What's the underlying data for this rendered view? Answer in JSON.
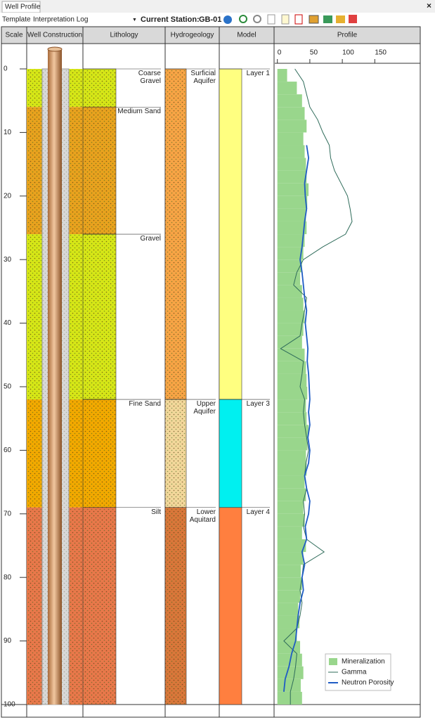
{
  "tab": "Well Profile",
  "toolbar": {
    "template_label": "Template",
    "template": "Interpretation Log",
    "station_label": "Current Station:",
    "station": "GB-01"
  },
  "columns": [
    "Scale",
    "Well Construction",
    "Lithology",
    "Hydrogeology",
    "Model",
    "Profile"
  ],
  "depth_axis": {
    "ylim": [
      0,
      100
    ],
    "yticks": [
      0,
      10,
      20,
      30,
      40,
      50,
      60,
      70,
      80,
      90,
      100
    ]
  },
  "lithology": [
    {
      "label": "Coarse Gravel",
      "top": 0,
      "bottom": 6,
      "color": "#d6e617"
    },
    {
      "label": "Medium Sand",
      "top": 6,
      "bottom": 26,
      "color": "#e8a21e"
    },
    {
      "label": "Gravel",
      "top": 26,
      "bottom": 52,
      "color": "#d6e617"
    },
    {
      "label": "Fine Sand",
      "top": 52,
      "bottom": 69,
      "color": "#f2a900"
    },
    {
      "label": "Silt",
      "top": 69,
      "bottom": 100,
      "color": "#e8784a"
    }
  ],
  "hydrogeology": [
    {
      "label": "Surficial Aquifer",
      "top": 0,
      "bottom": 52,
      "color": "#f7a445"
    },
    {
      "label": "Upper Aquifer",
      "top": 52,
      "bottom": 69,
      "color": "#f2d79a"
    },
    {
      "label": "Lower Aquitard",
      "top": 69,
      "bottom": 100,
      "color": "#d9773a"
    }
  ],
  "model": [
    {
      "label": "Layer 1",
      "top": 0,
      "bottom": 52,
      "color": "#ffff80"
    },
    {
      "label": "Layer 3",
      "top": 52,
      "bottom": 69,
      "color": "#00f0f0"
    },
    {
      "label": "Layer 4",
      "top": 69,
      "bottom": 100,
      "color": "#ff7f3f"
    }
  ],
  "profile": {
    "xlim": [
      -4,
      220
    ],
    "xticks": [
      0,
      50,
      100,
      150
    ],
    "depth": [
      0,
      2,
      4,
      6,
      8,
      10,
      12,
      14,
      16,
      18,
      20,
      22,
      24,
      26,
      28,
      30,
      32,
      34,
      36,
      38,
      40,
      42,
      44,
      46,
      48,
      50,
      52,
      54,
      56,
      58,
      60,
      62,
      64,
      66,
      68,
      70,
      72,
      74,
      76,
      78,
      80,
      82,
      84,
      86,
      88,
      90,
      92,
      94,
      96,
      98,
      100
    ],
    "series": [
      {
        "name": "Mineralization",
        "type": "bar",
        "color": "#99d68c",
        "values": [
          15,
          30,
          38,
          42,
          45,
          40,
          42,
          44,
          45,
          48,
          46,
          44,
          45,
          42,
          40,
          38,
          35,
          38,
          40,
          42,
          40,
          38,
          42,
          44,
          45,
          46,
          44,
          45,
          48,
          46,
          44,
          45,
          42,
          44,
          40,
          42,
          38,
          44,
          40,
          36,
          38,
          35,
          32,
          34,
          30,
          35,
          38,
          40,
          36,
          38
        ]
      },
      {
        "name": "Gamma",
        "type": "line",
        "color": "#2e6b5a",
        "values": [
          27,
          40,
          45,
          50,
          62,
          70,
          80,
          82,
          88,
          98,
          108,
          112,
          115,
          105,
          70,
          40,
          30,
          25,
          45,
          42,
          38,
          35,
          5,
          40,
          38,
          35,
          42,
          40,
          42,
          45,
          48,
          44,
          42,
          45,
          40,
          42,
          40,
          45,
          72,
          40,
          38,
          35,
          38,
          35,
          30,
          10,
          30,
          28,
          25,
          20,
          20
        ]
      },
      {
        "name": "Neutron Porosity",
        "type": "line",
        "color": "#1f5cc4",
        "values": [
          null,
          null,
          null,
          null,
          null,
          null,
          45,
          48,
          45,
          42,
          43,
          45,
          42,
          40,
          38,
          35,
          38,
          40,
          42,
          45,
          43,
          45,
          47,
          46,
          48,
          49,
          50,
          48,
          50,
          47,
          50,
          48,
          42,
          45,
          50,
          48,
          43,
          45,
          38,
          42,
          38,
          40,
          35,
          32,
          30,
          28,
          22,
          18,
          12,
          10,
          null
        ]
      }
    ]
  }
}
